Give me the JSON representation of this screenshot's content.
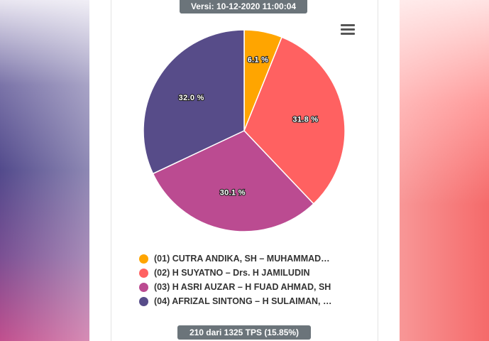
{
  "header": {
    "version_label": "Versi: 10-12-2020 11:00:04"
  },
  "footer": {
    "tps_label": "210 dari 1325 TPS (15.85%)"
  },
  "chart_data": {
    "type": "pie",
    "start_angle_deg": 0,
    "slices": [
      {
        "label": "(01) CUTRA ANDIKA, SH – MUHAMMAD…",
        "value": 6.1,
        "display": "6.1 %",
        "color": "#ffa500"
      },
      {
        "label": "(02) H SUYATNO – Drs. H JAMILUDIN",
        "value": 31.8,
        "display": "31.8 %",
        "color": "#ff6161"
      },
      {
        "label": "(03) H ASRI AUZAR – H FUAD AHMAD, SH",
        "value": 30.1,
        "display": "30.1 %",
        "color": "#bb4b91"
      },
      {
        "label": "(04) AFRIZAL SINTONG – H SULAIMAN, …",
        "value": 32.0,
        "display": "32.0 %",
        "color": "#574c89"
      }
    ]
  }
}
